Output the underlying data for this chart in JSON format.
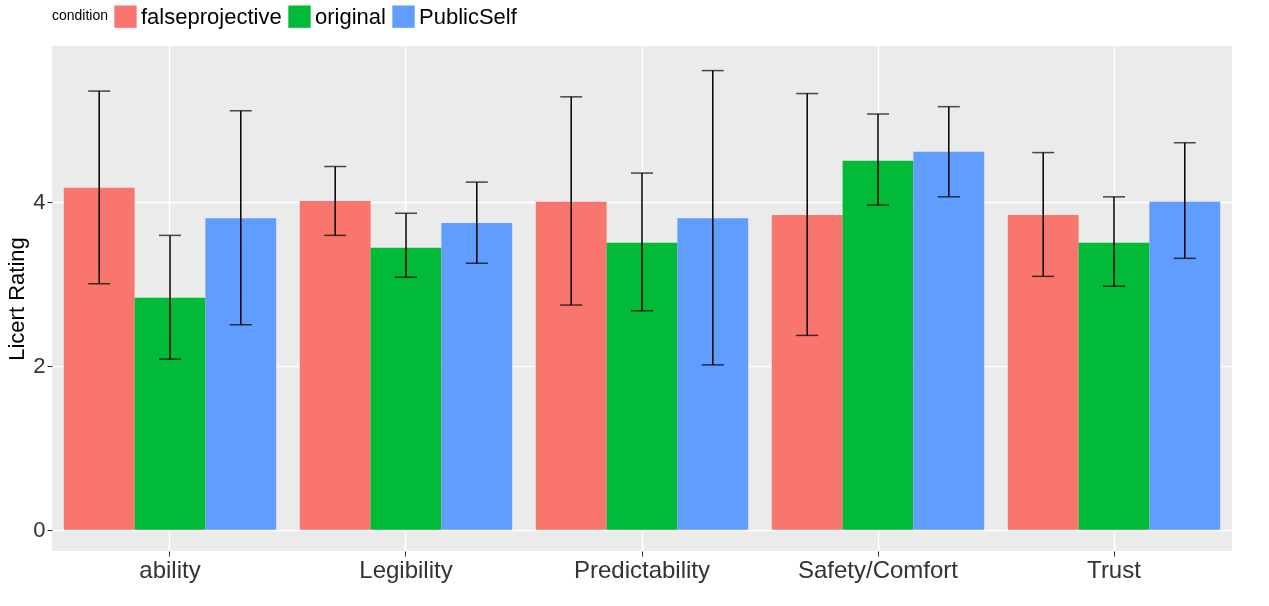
{
  "chart_data": {
    "type": "bar",
    "ylabel": "Licert Rating",
    "legend_title": "condition",
    "legend": "top",
    "grid": true,
    "categories": [
      "ability",
      "Legibility",
      "Predictability",
      "Safety/Comfort",
      "Trust"
    ],
    "ylim": [
      -0.26,
      5.9
    ],
    "yticks": [
      0,
      2,
      4
    ],
    "series": [
      {
        "name": "falseprojective",
        "color": "#f8766d",
        "values": [
          4.17,
          4.01,
          4.0,
          3.84,
          3.84
        ],
        "errors": [
          [
            3.0,
            5.35
          ],
          [
            3.59,
            4.43
          ],
          [
            2.74,
            5.28
          ],
          [
            2.37,
            5.32
          ],
          [
            3.09,
            4.6
          ]
        ]
      },
      {
        "name": "original",
        "color": "#00ba38",
        "values": [
          2.83,
          3.44,
          3.5,
          4.5,
          3.5
        ],
        "errors": [
          [
            2.08,
            3.59
          ],
          [
            3.08,
            3.86
          ],
          [
            2.67,
            4.35
          ],
          [
            3.96,
            5.07
          ],
          [
            2.97,
            4.06
          ]
        ]
      },
      {
        "name": "PublicSelf",
        "color": "#619cff",
        "values": [
          3.8,
          3.74,
          3.8,
          4.61,
          4.0
        ],
        "errors": [
          [
            2.5,
            5.11
          ],
          [
            3.25,
            4.24
          ],
          [
            2.01,
            5.6
          ],
          [
            4.06,
            5.16
          ],
          [
            3.31,
            4.72
          ]
        ]
      }
    ]
  }
}
